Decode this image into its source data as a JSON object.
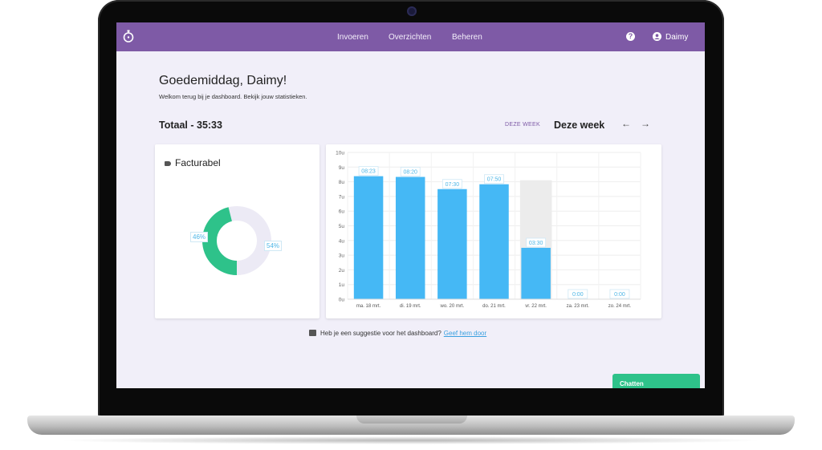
{
  "nav": {
    "items": [
      "Invoeren",
      "Overzichten",
      "Beheren"
    ],
    "help_icon": "help-circle-icon",
    "user_icon": "user-circle-icon",
    "user_name": "Daimy",
    "brand_color": "#7e5aa6"
  },
  "dashboard": {
    "greeting": "Goedemiddag, Daimy!",
    "subtitle": "Welkom terug bij je dashboard. Bekijk jouw statistieken.",
    "total": "Totaal - 35:33",
    "week_button": "DEZE WEEK",
    "week_title": "Deze week",
    "prev_arrow": "←",
    "next_arrow": "→"
  },
  "billable": {
    "title": "Facturabel",
    "icon": "tag-icon",
    "labels": [
      "46%",
      "54%"
    ],
    "colors": [
      "#2ec28a",
      "#eceaf5"
    ]
  },
  "chart_data": {
    "type": "bar",
    "categories": [
      "ma. 18 mrt.",
      "di. 19 mrt.",
      "wo. 20 mrt.",
      "do. 21 mrt.",
      "vr. 22 mrt.",
      "za. 23 mrt.",
      "zo. 24 mrt."
    ],
    "values": [
      8.38,
      8.33,
      7.5,
      7.83,
      3.5,
      0,
      0
    ],
    "data_labels": [
      "08:23",
      "08:20",
      "07:30",
      "07:50",
      "03:30",
      "0:00",
      "0:00"
    ],
    "y_ticks": [
      "0u",
      "1u",
      "2u",
      "3u",
      "4u",
      "5u",
      "6u",
      "7u",
      "8u",
      "9u",
      "10u"
    ],
    "ylim": [
      0,
      10
    ],
    "bar_color": "#45b8f5",
    "highlight_color": "#ececec",
    "grid": true
  },
  "suggestion": {
    "icon": "comment-icon",
    "text": "Heb je een suggestie voor het dashboard?",
    "link": "Geef hem door"
  },
  "chat": {
    "label": "Chatten",
    "color": "#2ec28a"
  }
}
